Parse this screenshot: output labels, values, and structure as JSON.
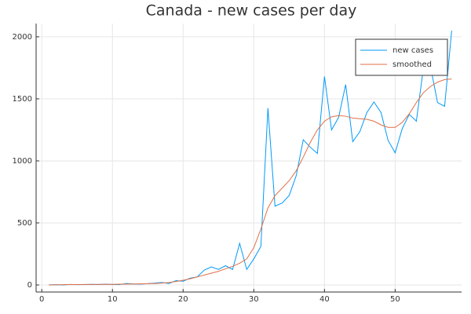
{
  "chart_data": {
    "type": "line",
    "title": "Canada - new cases per day",
    "x": [
      1,
      2,
      3,
      4,
      5,
      6,
      7,
      8,
      9,
      10,
      11,
      12,
      13,
      14,
      15,
      16,
      17,
      18,
      19,
      20,
      21,
      22,
      23,
      24,
      25,
      26,
      27,
      28,
      29,
      30,
      31,
      32,
      33,
      34,
      35,
      36,
      37,
      38,
      39,
      40,
      41,
      42,
      43,
      44,
      45,
      46,
      47,
      48,
      49,
      50,
      51,
      52,
      53,
      54,
      55,
      56,
      57,
      58
    ],
    "series": [
      {
        "name": "new cases",
        "color": "#009af9",
        "values": [
          1,
          2,
          0,
          4,
          2,
          3,
          5,
          3,
          6,
          4,
          3,
          12,
          8,
          7,
          10,
          15,
          20,
          12,
          35,
          30,
          55,
          65,
          120,
          145,
          125,
          155,
          125,
          335,
          125,
          210,
          310,
          1425,
          635,
          660,
          720,
          880,
          1170,
          1110,
          1060,
          1680,
          1250,
          1350,
          1615,
          1155,
          1235,
          1390,
          1475,
          1390,
          1165,
          1065,
          1260,
          1375,
          1320,
          1750,
          1760,
          1470,
          1440,
          2050
        ]
      },
      {
        "name": "smoothed",
        "color": "#e26f46",
        "values": [
          0,
          1,
          2,
          3,
          3,
          4,
          4,
          5,
          5,
          5,
          6,
          7,
          8,
          9,
          10,
          12,
          15,
          20,
          28,
          38,
          50,
          65,
          80,
          95,
          110,
          130,
          150,
          175,
          210,
          300,
          450,
          620,
          720,
          780,
          840,
          920,
          1030,
          1150,
          1250,
          1320,
          1355,
          1365,
          1360,
          1345,
          1340,
          1335,
          1320,
          1290,
          1270,
          1270,
          1310,
          1380,
          1470,
          1550,
          1600,
          1635,
          1655,
          1660
        ]
      }
    ],
    "xlim": [
      -0.8,
      59.4
    ],
    "xticks": [
      0,
      10,
      20,
      30,
      40,
      50
    ],
    "ylim": [
      -57,
      2107
    ],
    "yticks": [
      0,
      500,
      1000,
      1500,
      2000
    ],
    "grid": true,
    "legend": "top-right"
  }
}
